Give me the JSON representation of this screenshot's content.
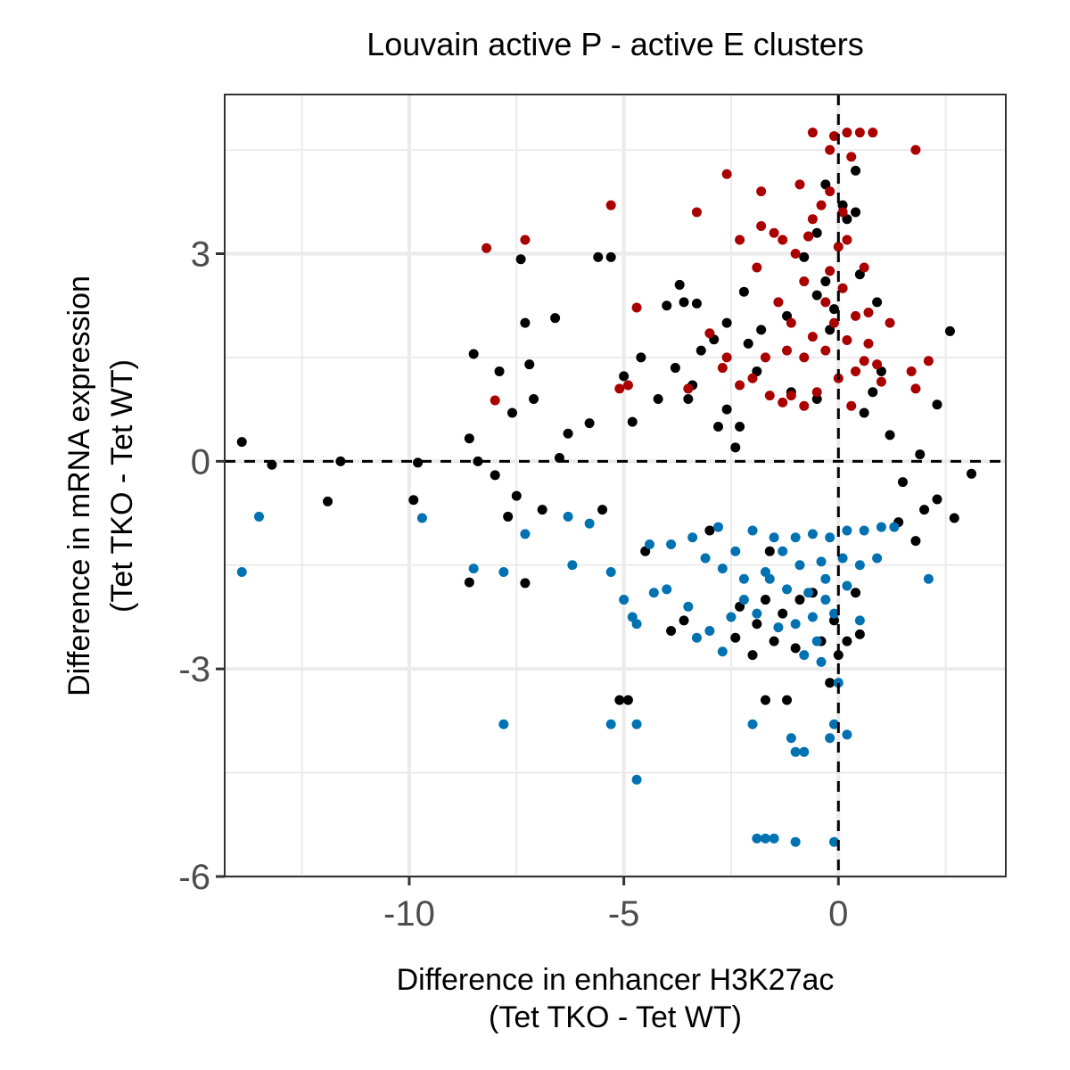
{
  "chart_data": {
    "type": "scatter",
    "title": "Louvain active P - active E clusters",
    "xlabel": [
      "Difference in enhancer H3K27ac",
      "(Tet TKO - Tet WT)"
    ],
    "ylabel": [
      "Difference in mRNA expression",
      "(Tet TKO - Tet WT)"
    ],
    "xlim": [
      -14.3,
      3.9
    ],
    "ylim": [
      -6,
      5.3
    ],
    "x_ticks": [
      -10,
      -5,
      0
    ],
    "y_ticks": [
      -6,
      -3,
      0,
      3
    ],
    "x_tick_labels": [
      "-10",
      "-5",
      "0"
    ],
    "y_tick_labels": [
      "-6",
      "-3",
      "0",
      "3"
    ],
    "grid": true,
    "reference_lines": {
      "x": 0,
      "y": 0,
      "style": "dashed"
    },
    "colors": {
      "up": "#aa0000",
      "down": "#0072b2",
      "neutral": "#000000",
      "grid": "#ebebeb"
    },
    "series": [
      {
        "group": "neutral",
        "color": "#000000",
        "points": [
          [
            -13.9,
            0.28
          ],
          [
            -13.2,
            -0.05
          ],
          [
            -11.6,
            0.0
          ],
          [
            -11.9,
            -0.58
          ],
          [
            -9.9,
            -0.56
          ],
          [
            -9.8,
            -0.02
          ],
          [
            -8.6,
            0.33
          ],
          [
            -8.5,
            1.55
          ],
          [
            -8.6,
            -1.75
          ],
          [
            -8.4,
            0.0
          ],
          [
            -7.9,
            1.3
          ],
          [
            -7.7,
            -0.8
          ],
          [
            -7.4,
            2.92
          ],
          [
            -7.3,
            2.0
          ],
          [
            -7.3,
            -1.76
          ],
          [
            -7.2,
            1.4
          ],
          [
            -7.1,
            0.9
          ],
          [
            -6.6,
            2.07
          ],
          [
            -5.6,
            2.95
          ],
          [
            -5.3,
            2.95
          ],
          [
            -5.1,
            -3.45
          ],
          [
            -4.9,
            -3.45
          ],
          [
            -5.0,
            1.23
          ],
          [
            -4.8,
            0.57
          ],
          [
            -4.0,
            2.25
          ],
          [
            -3.7,
            2.55
          ],
          [
            -3.6,
            2.3
          ],
          [
            -3.2,
            1.6
          ],
          [
            -3.3,
            2.28
          ],
          [
            -2.9,
            1.76
          ],
          [
            -2.6,
            0.75
          ],
          [
            -2.4,
            0.2
          ],
          [
            -2.3,
            0.5
          ],
          [
            -2.2,
            2.45
          ],
          [
            -2.1,
            1.7
          ],
          [
            -1.8,
            1.9
          ],
          [
            -1.7,
            -3.45
          ],
          [
            -2.0,
            -2.8
          ],
          [
            -2.4,
            -2.55
          ],
          [
            -3.6,
            -2.3
          ],
          [
            -3.9,
            -2.45
          ],
          [
            -1.2,
            -3.45
          ],
          [
            -1.6,
            -1.3
          ],
          [
            -1.0,
            -2.7
          ],
          [
            -0.8,
            2.95
          ],
          [
            -0.7,
            3.25
          ],
          [
            -0.5,
            3.3
          ],
          [
            -0.3,
            2.6
          ],
          [
            -0.2,
            1.9
          ],
          [
            -0.1,
            2.2
          ],
          [
            0.2,
            3.5
          ],
          [
            0.4,
            3.6
          ],
          [
            0.5,
            2.7
          ],
          [
            0.8,
            1.0
          ],
          [
            1.2,
            0.38
          ],
          [
            1.4,
            -0.88
          ],
          [
            1.8,
            -1.15
          ],
          [
            2.3,
            -0.55
          ],
          [
            2.7,
            -0.82
          ],
          [
            3.1,
            -0.18
          ],
          [
            2.6,
            1.88
          ],
          [
            2.3,
            0.82
          ],
          [
            1.9,
            0.1
          ],
          [
            0.5,
            -2.5
          ],
          [
            0.0,
            -2.8
          ],
          [
            -0.2,
            -3.2
          ],
          [
            -0.4,
            -2.6
          ],
          [
            -0.9,
            -2.0
          ],
          [
            -1.3,
            -2.2
          ],
          [
            -1.5,
            -2.6
          ],
          [
            -1.9,
            -2.35
          ],
          [
            0.4,
            -1.9
          ],
          [
            -5.8,
            0.55
          ],
          [
            -6.3,
            0.4
          ],
          [
            -6.5,
            0.05
          ],
          [
            -6.9,
            -0.7
          ],
          [
            -7.5,
            -0.5
          ],
          [
            -7.6,
            0.7
          ],
          [
            -8.0,
            -0.2
          ],
          [
            -4.6,
            1.5
          ],
          [
            -4.2,
            0.9
          ],
          [
            -3.8,
            1.35
          ],
          [
            -3.4,
            1.1
          ],
          [
            -2.6,
            2.0
          ],
          [
            -1.2,
            2.1
          ],
          [
            -0.5,
            2.4
          ],
          [
            0.1,
            3.7
          ],
          [
            -0.3,
            4.0
          ],
          [
            0.4,
            4.2
          ],
          [
            0.9,
            2.3
          ],
          [
            1.0,
            1.3
          ],
          [
            -4.5,
            -1.3
          ],
          [
            -5.5,
            -0.7
          ],
          [
            -3.0,
            -1.0
          ],
          [
            -3.5,
            0.9
          ],
          [
            -2.8,
            0.5
          ],
          [
            -1.9,
            1.3
          ],
          [
            -1.1,
            1.0
          ],
          [
            -0.5,
            0.9
          ],
          [
            0.6,
            0.7
          ],
          [
            1.5,
            -0.3
          ],
          [
            2.0,
            -0.7
          ],
          [
            -0.6,
            -1.9
          ],
          [
            -0.1,
            -2.3
          ],
          [
            0.2,
            -2.6
          ],
          [
            -1.7,
            -2.0
          ],
          [
            -2.3,
            -2.1
          ]
        ]
      },
      {
        "group": "up",
        "color": "#aa0000",
        "points": [
          [
            -8.2,
            3.08
          ],
          [
            -7.3,
            3.2
          ],
          [
            -8.0,
            0.88
          ],
          [
            -5.1,
            1.05
          ],
          [
            -4.9,
            1.1
          ],
          [
            -5.3,
            3.7
          ],
          [
            -4.7,
            2.22
          ],
          [
            -3.3,
            3.6
          ],
          [
            -2.6,
            4.15
          ],
          [
            -1.8,
            3.9
          ],
          [
            -2.3,
            3.2
          ],
          [
            -1.8,
            3.4
          ],
          [
            -0.6,
            4.75
          ],
          [
            0.2,
            4.75
          ],
          [
            0.5,
            4.75
          ],
          [
            0.8,
            4.75
          ],
          [
            -0.1,
            4.7
          ],
          [
            -0.2,
            4.5
          ],
          [
            0.3,
            4.4
          ],
          [
            -0.4,
            3.7
          ],
          [
            -0.2,
            3.9
          ],
          [
            0.1,
            3.6
          ],
          [
            0.2,
            3.2
          ],
          [
            -0.7,
            3.25
          ],
          [
            -1.3,
            3.2
          ],
          [
            -1.5,
            3.3
          ],
          [
            -1.0,
            3.0
          ],
          [
            -0.8,
            2.6
          ],
          [
            -1.9,
            2.8
          ],
          [
            0.6,
            2.8
          ],
          [
            1.8,
            4.5
          ],
          [
            -1.7,
            1.5
          ],
          [
            -0.8,
            1.5
          ],
          [
            -0.3,
            1.6
          ],
          [
            0.2,
            1.75
          ],
          [
            0.6,
            1.45
          ],
          [
            1.0,
            1.15
          ],
          [
            1.2,
            2.0
          ],
          [
            1.7,
            1.3
          ],
          [
            1.8,
            1.05
          ],
          [
            2.1,
            1.45
          ],
          [
            -3.5,
            1.05
          ],
          [
            -3.0,
            1.85
          ],
          [
            -2.7,
            1.35
          ],
          [
            -2.3,
            1.1
          ],
          [
            -1.6,
            0.95
          ],
          [
            -1.1,
            0.95
          ],
          [
            -0.5,
            1.0
          ],
          [
            0.0,
            1.2
          ],
          [
            0.4,
            1.3
          ],
          [
            -0.1,
            2.0
          ],
          [
            -0.3,
            2.3
          ],
          [
            0.1,
            2.5
          ],
          [
            0.4,
            2.1
          ],
          [
            -0.6,
            1.8
          ],
          [
            -1.2,
            1.6
          ],
          [
            -1.4,
            2.3
          ],
          [
            0.7,
            1.7
          ],
          [
            0.9,
            1.4
          ],
          [
            0.3,
            0.8
          ],
          [
            -0.8,
            0.8
          ],
          [
            -1.3,
            0.85
          ],
          [
            -2.0,
            1.2
          ],
          [
            -2.6,
            1.5
          ],
          [
            0.7,
            2.15
          ],
          [
            -0.2,
            2.75
          ],
          [
            -0.9,
            4.0
          ],
          [
            -0.6,
            3.5
          ],
          [
            0.0,
            3.1
          ],
          [
            -1.1,
            2.0
          ]
        ]
      },
      {
        "group": "down",
        "color": "#0072b2",
        "points": [
          [
            -13.9,
            -1.6
          ],
          [
            -13.5,
            -0.8
          ],
          [
            -9.7,
            -0.82
          ],
          [
            -8.5,
            -1.55
          ],
          [
            -7.8,
            -1.6
          ],
          [
            -7.3,
            -1.05
          ],
          [
            -7.8,
            -3.8
          ],
          [
            -5.3,
            -3.8
          ],
          [
            -4.7,
            -3.8
          ],
          [
            -4.7,
            -4.6
          ],
          [
            -4.7,
            -2.35
          ],
          [
            -4.8,
            -2.25
          ],
          [
            -5.0,
            -2.0
          ],
          [
            -5.3,
            -1.6
          ],
          [
            -6.2,
            -1.5
          ],
          [
            -4.3,
            -1.9
          ],
          [
            -4.0,
            -1.85
          ],
          [
            -3.5,
            -2.1
          ],
          [
            -3.3,
            -2.55
          ],
          [
            -2.7,
            -2.75
          ],
          [
            -3.0,
            -2.45
          ],
          [
            -2.5,
            -2.25
          ],
          [
            -2.0,
            -3.8
          ],
          [
            -1.1,
            -4.0
          ],
          [
            -1.0,
            -4.2
          ],
          [
            -0.8,
            -4.2
          ],
          [
            -0.2,
            -4.0
          ],
          [
            -0.1,
            -3.8
          ],
          [
            0.2,
            -3.95
          ],
          [
            -1.9,
            -5.45
          ],
          [
            -1.7,
            -5.45
          ],
          [
            -1.5,
            -5.45
          ],
          [
            -1.0,
            -5.5
          ],
          [
            -0.1,
            -5.5
          ],
          [
            0.0,
            -3.2
          ],
          [
            -0.4,
            -2.9
          ],
          [
            -0.8,
            -2.8
          ],
          [
            -1.4,
            -2.4
          ],
          [
            -1.9,
            -2.2
          ],
          [
            -2.2,
            -1.7
          ],
          [
            -2.7,
            -1.55
          ],
          [
            -3.4,
            -1.1
          ],
          [
            -3.9,
            -1.2
          ],
          [
            -4.4,
            -1.2
          ],
          [
            -5.8,
            -0.9
          ],
          [
            -6.3,
            -0.8
          ],
          [
            -2.0,
            -1.0
          ],
          [
            -1.5,
            -1.1
          ],
          [
            -1.0,
            -1.1
          ],
          [
            -0.6,
            -1.05
          ],
          [
            -0.2,
            -1.1
          ],
          [
            0.2,
            -1.0
          ],
          [
            0.6,
            -1.0
          ],
          [
            1.0,
            -0.95
          ],
          [
            0.5,
            -1.5
          ],
          [
            0.2,
            -1.8
          ],
          [
            -0.3,
            -2.0
          ],
          [
            -0.7,
            -1.9
          ],
          [
            -1.2,
            -1.85
          ],
          [
            -1.7,
            -1.6
          ],
          [
            -0.5,
            -2.6
          ],
          [
            -0.1,
            -2.2
          ],
          [
            0.5,
            -2.3
          ],
          [
            1.3,
            -0.95
          ],
          [
            2.1,
            -1.7
          ],
          [
            0.9,
            -1.4
          ],
          [
            -2.4,
            -1.3
          ],
          [
            -2.8,
            -0.95
          ],
          [
            -1.3,
            -1.3
          ],
          [
            -0.9,
            -1.5
          ],
          [
            -0.4,
            -1.45
          ],
          [
            0.1,
            -1.4
          ],
          [
            -1.6,
            -1.7
          ],
          [
            -2.2,
            -2.0
          ],
          [
            -3.1,
            -1.4
          ],
          [
            -1.0,
            -2.35
          ],
          [
            -0.6,
            -2.25
          ],
          [
            -0.3,
            -1.7
          ]
        ]
      }
    ]
  }
}
